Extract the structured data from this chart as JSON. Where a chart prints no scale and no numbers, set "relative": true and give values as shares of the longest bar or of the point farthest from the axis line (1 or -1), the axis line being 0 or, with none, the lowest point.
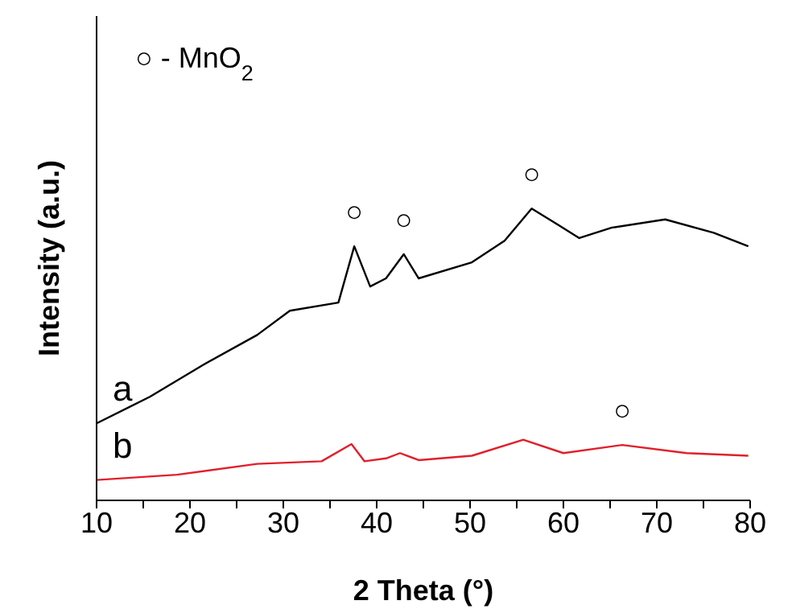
{
  "chart_data": {
    "type": "line",
    "relative": true,
    "xlabel": "2 Theta (°)",
    "ylabel": "Intensity (a.u.)",
    "xlim": [
      10,
      80
    ],
    "xticks": [
      10,
      {
        "value": 15,
        "label": null
      },
      20,
      {
        "value": 25,
        "label": null
      },
      30,
      {
        "value": 35,
        "label": null
      },
      40,
      {
        "value": 45,
        "label": null
      },
      50,
      {
        "value": 55,
        "label": null
      },
      60,
      {
        "value": 65,
        "label": null
      },
      70,
      {
        "value": 75,
        "label": null
      },
      80
    ],
    "grid": false,
    "legend": false,
    "marker": "none",
    "line_style": "solid",
    "series": [
      {
        "name": "a",
        "color": "#000000",
        "x": [
          10,
          15.7,
          21.5,
          27.2,
          30.7,
          35.9,
          37.6,
          39.3,
          41.0,
          42.9,
          44.5,
          50.2,
          53.7,
          56.6,
          59.4,
          61.7,
          65.2,
          70.9,
          76.1,
          79.8
        ],
        "values": [
          0.264,
          0.355,
          0.466,
          0.567,
          0.65,
          0.678,
          0.871,
          0.733,
          0.761,
          0.844,
          0.761,
          0.816,
          0.89,
          1,
          0.945,
          0.899,
          0.935,
          0.963,
          0.917,
          0.871
        ]
      },
      {
        "name": "b",
        "color": "#e0202a",
        "x": [
          10,
          18.6,
          27.2,
          34.1,
          37.3,
          38.7,
          41.0,
          42.5,
          44.5,
          50.2,
          55.7,
          60.0,
          66.3,
          73.2,
          79.8
        ],
        "values": [
          0.07,
          0.088,
          0.125,
          0.134,
          0.193,
          0.134,
          0.144,
          0.162,
          0.138,
          0.153,
          0.208,
          0.162,
          0.19,
          0.162,
          0.153
        ]
      }
    ],
    "annotations": [
      "○ - MnO$_{2}$",
      {
        "text": "○",
        "x": 37.6,
        "y": 0.871
      },
      {
        "text": "○",
        "x": 42.9,
        "y": 0.844
      },
      {
        "text": "○",
        "x": 56.6,
        "y": 1
      },
      {
        "text": "○",
        "x": 66.3,
        "y": 0.19
      }
    ]
  }
}
